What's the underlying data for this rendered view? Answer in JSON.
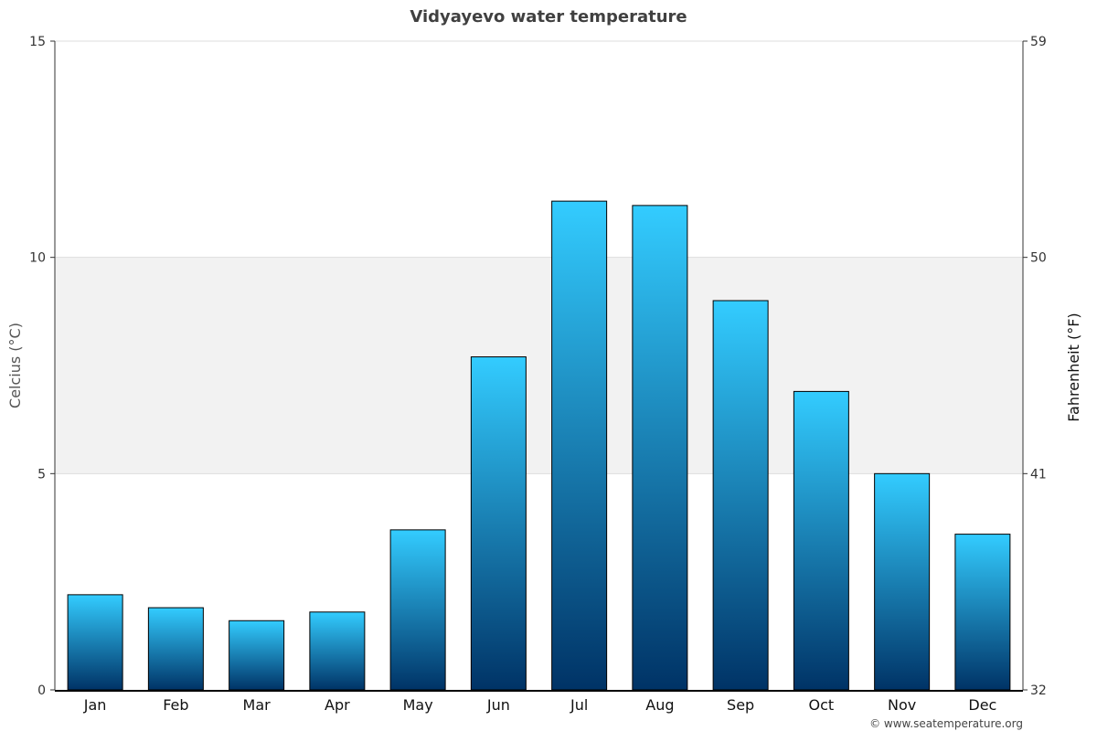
{
  "chart_data": {
    "type": "bar",
    "title": "Vidyayevo water temperature",
    "categories": [
      "Jan",
      "Feb",
      "Mar",
      "Apr",
      "May",
      "Jun",
      "Jul",
      "Aug",
      "Sep",
      "Oct",
      "Nov",
      "Dec"
    ],
    "values": [
      2.2,
      1.9,
      1.6,
      1.8,
      3.7,
      7.7,
      11.3,
      11.2,
      9.0,
      6.9,
      5.0,
      3.6
    ],
    "ylabel": "Celcius (°C)",
    "ylabel_right": "Fahrenheit (°F)",
    "ylim": [
      0,
      15
    ],
    "yticks": [
      "0",
      "5",
      "10",
      "15"
    ],
    "yticks_right": [
      "32",
      "41",
      "50",
      "59"
    ],
    "grid": true,
    "highlight_band": [
      5,
      10
    ],
    "colors": {
      "bar_top": "#33ccff",
      "bar_bottom": "#003366",
      "band": "#f2f2f2",
      "grid": "#dddddd"
    }
  },
  "footer": {
    "credit": "© www.seatemperature.org"
  }
}
